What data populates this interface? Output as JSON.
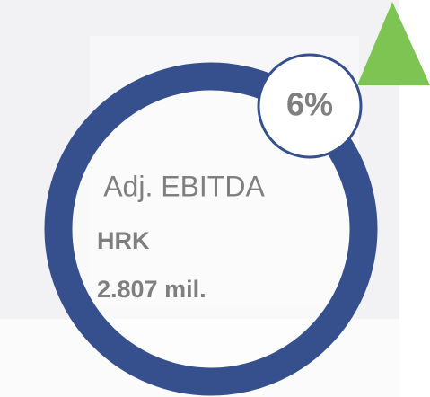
{
  "metric": {
    "label": "Adj. EBITDA",
    "currency": "HRK",
    "amount": "2.807 mil.",
    "change": "6%"
  }
}
